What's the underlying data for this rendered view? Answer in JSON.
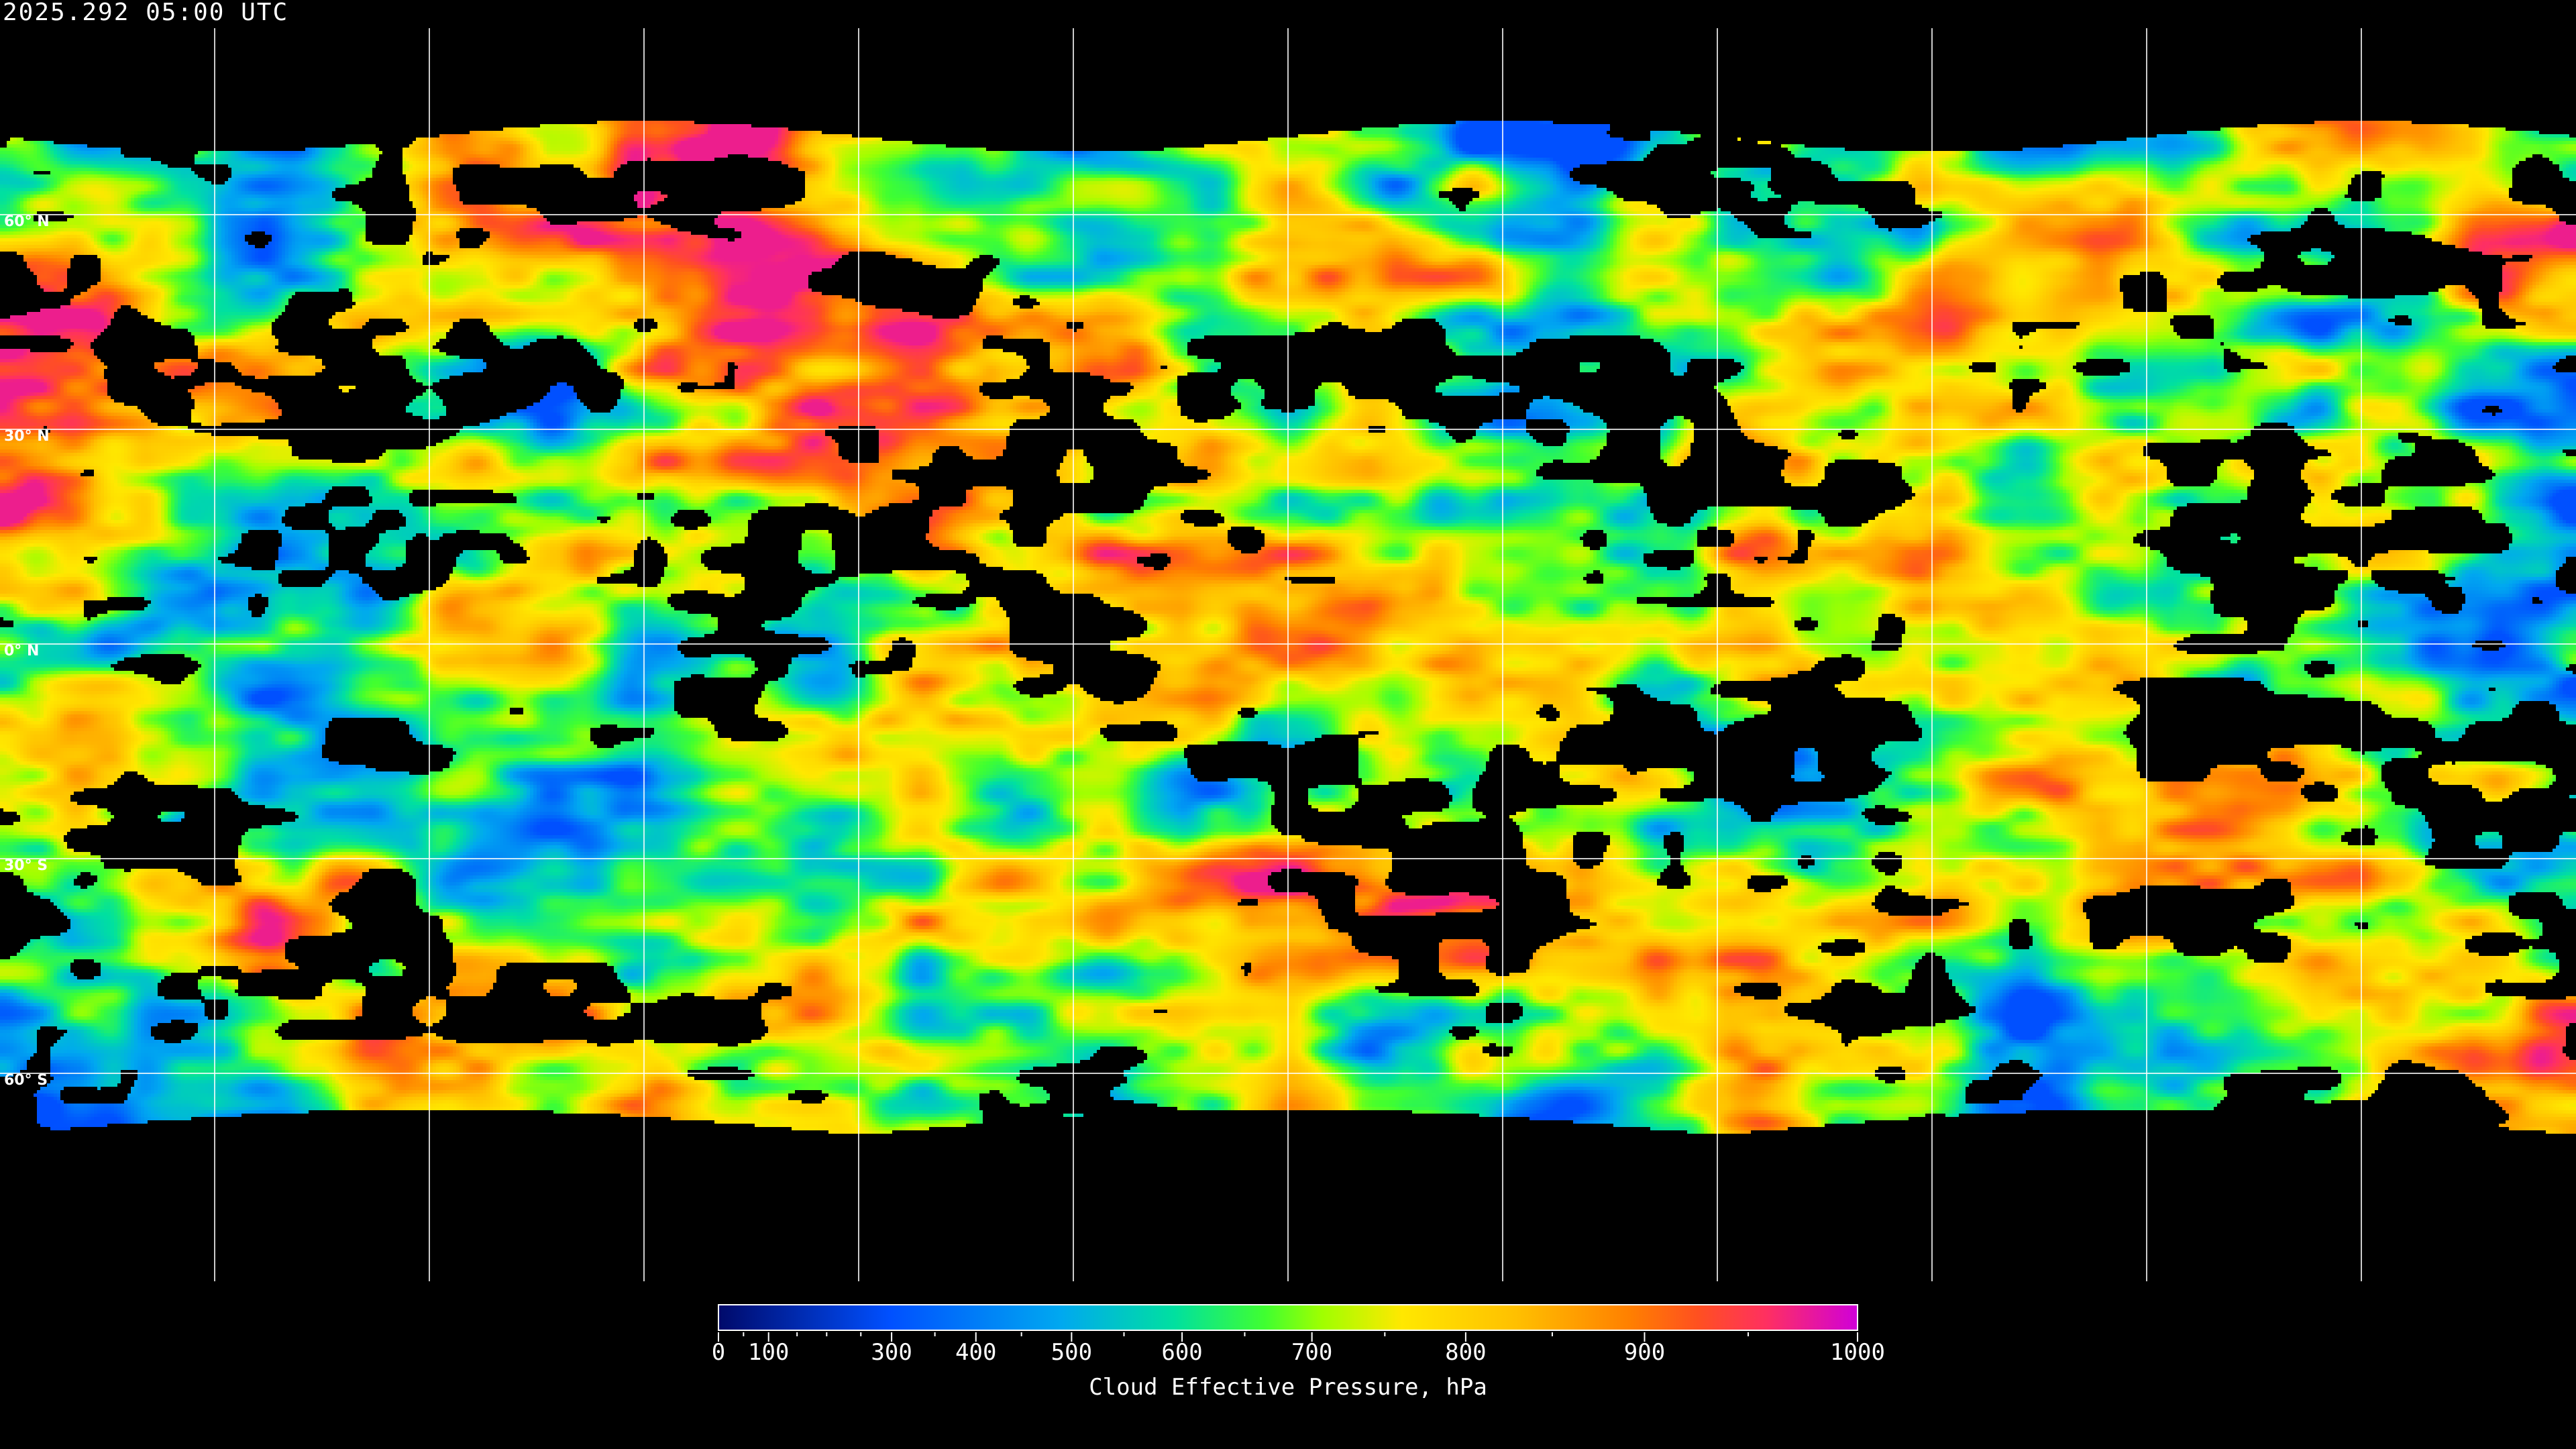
{
  "header": {
    "timestamp": "2025.292 05:00 UTC"
  },
  "map": {
    "projection": "equirectangular",
    "grid_spacing_deg": 30,
    "lat_labels": [
      "60° N",
      "30° N",
      "0° N",
      "30° S",
      "60° S"
    ],
    "lat_values": [
      60,
      30,
      0,
      -30,
      -60
    ],
    "no_data_color": "#000000",
    "grid_color": "#ffffff"
  },
  "colorbar": {
    "title": "Cloud Effective Pressure, hPa",
    "range": [
      0,
      1000
    ],
    "major_ticks": [
      "0",
      "100",
      "300",
      "400",
      "500",
      "600",
      "700",
      "800",
      "900",
      "1000"
    ],
    "minor_ticks": [
      50,
      150,
      200,
      250,
      350,
      450,
      550,
      650,
      750,
      850,
      950
    ],
    "colors": [
      "#000a6b",
      "#0050ff",
      "#00a8f0",
      "#00e0a0",
      "#40ff30",
      "#a0ff00",
      "#ffe800",
      "#ffc000",
      "#ff8000",
      "#ff5020",
      "#ff3060",
      "#d000d8"
    ]
  }
}
